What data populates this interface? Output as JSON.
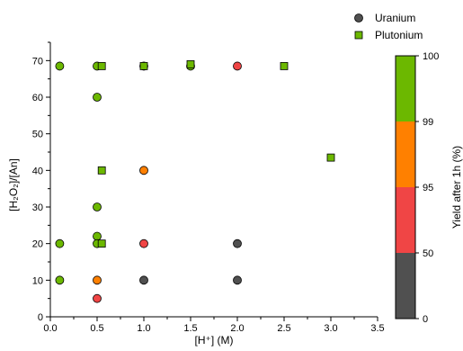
{
  "chart_data": {
    "type": "scatter",
    "xlabel": "[H⁺] (M)",
    "ylabel": "[H₂O₂]/[An]",
    "xlim": [
      0,
      3.5
    ],
    "ylim": [
      0,
      75
    ],
    "xticks": [
      "0.0",
      "0.5",
      "1.0",
      "1.5",
      "2.0",
      "2.5",
      "3.0",
      "3.5"
    ],
    "yticks": [
      "0",
      "10",
      "20",
      "30",
      "40",
      "50",
      "60",
      "70"
    ],
    "legend": {
      "placement": "top-right",
      "entries": [
        {
          "name": "Uranium",
          "marker": "circle"
        },
        {
          "name": "Plutonium",
          "marker": "square"
        }
      ]
    },
    "colorbar": {
      "label": "Yield after 1h (%)",
      "segments": [
        {
          "color": "#505050",
          "low_label": "0",
          "high_label": "50"
        },
        {
          "color": "#f04545",
          "low_label": "50",
          "high_label": "95"
        },
        {
          "color": "#ff8000",
          "low_label": "95",
          "high_label": "99"
        },
        {
          "color": "#6cb800",
          "low_label": "99",
          "high_label": "100"
        }
      ],
      "tick_labels": [
        "0",
        "50",
        "95",
        "99",
        "100"
      ]
    },
    "category_colors": {
      "lt50": "#505050",
      "50to95": "#f04545",
      "95to99": "#ff8000",
      "99to100": "#6cb800"
    },
    "series": [
      {
        "name": "Uranium",
        "marker": "circle",
        "points": [
          {
            "x": 0.1,
            "y": 68.5,
            "cat": "99to100"
          },
          {
            "x": 0.5,
            "y": 68.5,
            "cat": "99to100"
          },
          {
            "x": 0.5,
            "y": 60,
            "cat": "99to100"
          },
          {
            "x": 0.5,
            "y": 30,
            "cat": "99to100"
          },
          {
            "x": 0.5,
            "y": 22,
            "cat": "99to100"
          },
          {
            "x": 0.5,
            "y": 20,
            "cat": "99to100"
          },
          {
            "x": 0.1,
            "y": 20,
            "cat": "99to100"
          },
          {
            "x": 0.1,
            "y": 10,
            "cat": "99to100"
          },
          {
            "x": 0.5,
            "y": 10,
            "cat": "95to99"
          },
          {
            "x": 0.5,
            "y": 5,
            "cat": "50to95"
          },
          {
            "x": 1.0,
            "y": 68.5,
            "cat": "99to100"
          },
          {
            "x": 1.0,
            "y": 40,
            "cat": "95to99"
          },
          {
            "x": 1.0,
            "y": 20,
            "cat": "50to95"
          },
          {
            "x": 1.0,
            "y": 10,
            "cat": "lt50"
          },
          {
            "x": 1.5,
            "y": 68.5,
            "cat": "99to100"
          },
          {
            "x": 2.0,
            "y": 68.5,
            "cat": "50to95"
          },
          {
            "x": 2.0,
            "y": 20,
            "cat": "lt50"
          },
          {
            "x": 2.0,
            "y": 10,
            "cat": "lt50"
          }
        ]
      },
      {
        "name": "Plutonium",
        "marker": "square",
        "points": [
          {
            "x": 0.55,
            "y": 68.5,
            "cat": "99to100"
          },
          {
            "x": 0.55,
            "y": 40,
            "cat": "99to100"
          },
          {
            "x": 0.55,
            "y": 20,
            "cat": "99to100"
          },
          {
            "x": 1.0,
            "y": 68.5,
            "cat": "99to100"
          },
          {
            "x": 1.5,
            "y": 69,
            "cat": "99to100"
          },
          {
            "x": 2.5,
            "y": 68.5,
            "cat": "99to100"
          },
          {
            "x": 3.0,
            "y": 43.5,
            "cat": "99to100"
          }
        ]
      }
    ]
  }
}
